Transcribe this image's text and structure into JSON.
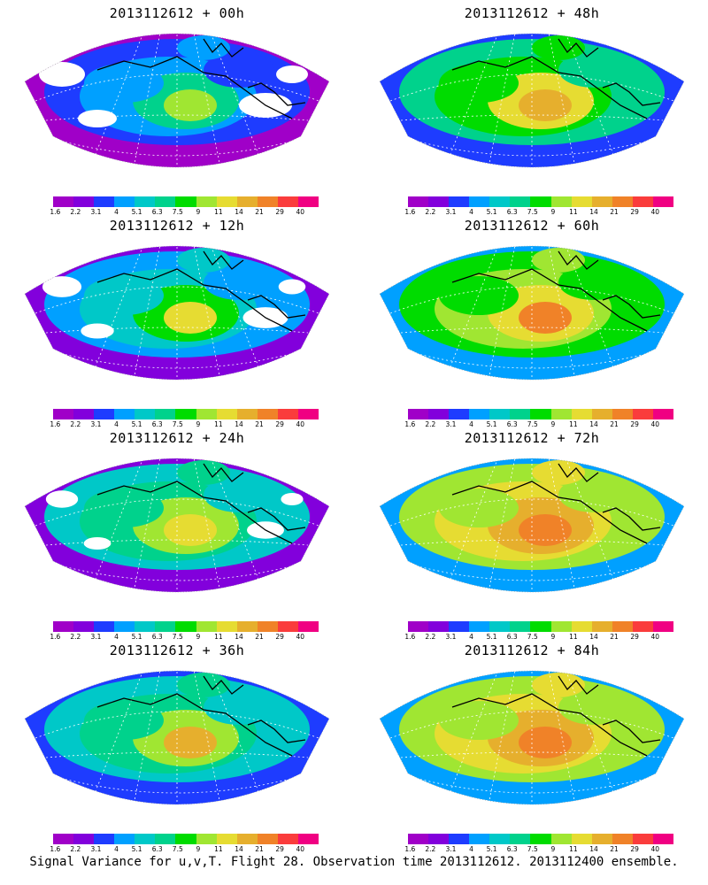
{
  "panels": [
    {
      "title": "2013112612 + 00h",
      "intensity": 0.0
    },
    {
      "title": "2013112612 + 48h",
      "intensity": 0.55
    },
    {
      "title": "2013112612 + 12h",
      "intensity": 0.15
    },
    {
      "title": "2013112612 + 60h",
      "intensity": 0.65
    },
    {
      "title": "2013112612 + 24h",
      "intensity": 0.3
    },
    {
      "title": "2013112612 + 72h",
      "intensity": 0.75
    },
    {
      "title": "2013112612 + 36h",
      "intensity": 0.4
    },
    {
      "title": "2013112612 + 84h",
      "intensity": 0.85
    }
  ],
  "colorbar": {
    "labels": [
      "1.6",
      "2.2",
      "3.1",
      "4",
      "5.1",
      "6.3",
      "7.5",
      "9",
      "11",
      "14",
      "21",
      "29",
      "40"
    ],
    "colors": [
      "#a000c8",
      "#8200dc",
      "#1e3cff",
      "#00a0ff",
      "#00c8c8",
      "#00d28c",
      "#00dc00",
      "#a0e632",
      "#e6dc32",
      "#e6af2d",
      "#f08228",
      "#fa3c3c",
      "#f00082"
    ]
  },
  "caption": "Signal Variance for u,v,T. Flight 28. Observation time 2013112612. 2013112400 ensemble."
}
